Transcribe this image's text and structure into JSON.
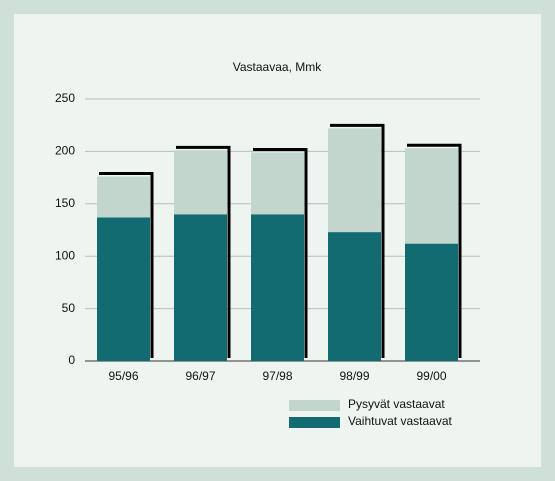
{
  "chart_data": {
    "type": "stacked_bar",
    "title": "Vastaavaa, Mmk",
    "categories": [
      "95/96",
      "96/97",
      "97/98",
      "98/99",
      "99/00"
    ],
    "series": [
      {
        "name": "Vaihtuvat vastaavat",
        "color": "#136b72",
        "values": [
          137,
          140,
          140,
          123,
          112
        ]
      },
      {
        "name": "Pysyvät vastaavat",
        "color": "#c2d6cd",
        "values": [
          39,
          61,
          59,
          99,
          91
        ]
      }
    ],
    "ylim": [
      0,
      250
    ],
    "yticks": [
      0,
      50,
      100,
      150,
      200,
      250
    ],
    "grid": true
  }
}
